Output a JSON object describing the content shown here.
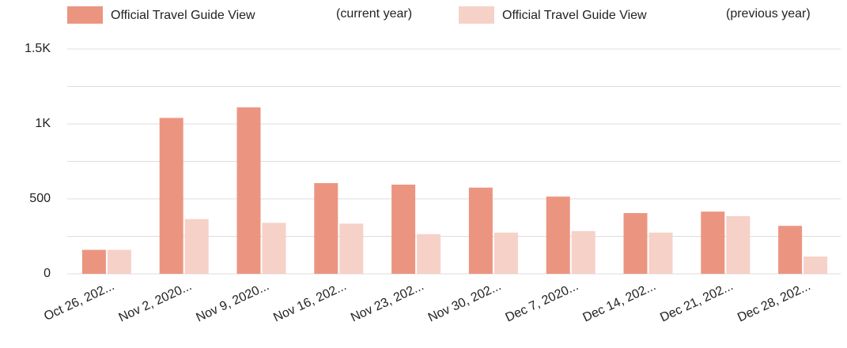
{
  "chart_data": {
    "type": "bar",
    "categories": [
      "Oct 26, 202...",
      "Nov 2, 2020...",
      "Nov 9, 2020...",
      "Nov 16, 202...",
      "Nov 23, 202...",
      "Nov 30, 202...",
      "Dec 7, 2020...",
      "Dec 14, 202...",
      "Dec 21, 202...",
      "Dec 28, 202..."
    ],
    "series": [
      {
        "name": "Official Travel Guide View",
        "period": "(current year)",
        "color": "#eb9580",
        "values": [
          160,
          1040,
          1110,
          605,
          595,
          575,
          515,
          405,
          415,
          320
        ]
      },
      {
        "name": "Official Travel Guide View",
        "period": "(previous year)",
        "color": "#f6d1c8",
        "values": [
          160,
          365,
          340,
          335,
          265,
          275,
          285,
          275,
          385,
          115
        ]
      }
    ],
    "ylim": [
      0,
      1500
    ],
    "yticks": [
      0,
      500,
      {
        "value": 1000,
        "label": "1K"
      },
      {
        "value": 1500,
        "label": "1.5K"
      }
    ],
    "minor_yticks": [
      250,
      750,
      1250
    ],
    "grid": true,
    "legend": "top"
  }
}
